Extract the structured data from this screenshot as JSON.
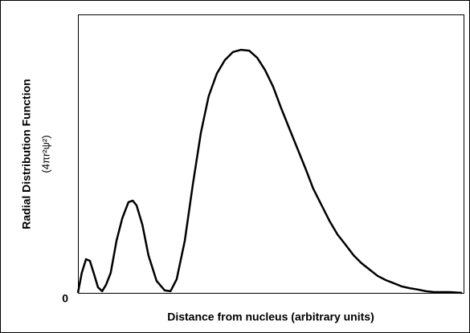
{
  "chart_data": {
    "type": "line",
    "x_label": "Distance from nucleus (arbitrary units)",
    "y_label": "Radial Distribution Function",
    "y_label_sub": "(4πr²ψ²)",
    "xlim": [
      0,
      100
    ],
    "ylim": [
      0,
      100
    ],
    "yticks": [
      0
    ],
    "series": [
      {
        "color": "#000000",
        "x": [
          0,
          1.0,
          2.1,
          3.1,
          4.2,
          5.2,
          6.3,
          7.3,
          8.5,
          10.0,
          11.5,
          13.1,
          14.2,
          15.2,
          16.7,
          18.3,
          20.4,
          22.5,
          24.0,
          25.6,
          27.7,
          29.8,
          31.9,
          33.9,
          36.0,
          38.1,
          40.2,
          42.3,
          44.4,
          46.5,
          48.5,
          50.6,
          52.7,
          54.8,
          56.9,
          59.0,
          61.0,
          63.1,
          65.2,
          67.3,
          69.4,
          71.5,
          73.5,
          75.6,
          77.7,
          79.8,
          81.9,
          84.0,
          86.0,
          88.1,
          90.2,
          92.3,
          96.5,
          99.6
        ],
        "values": [
          0,
          7.2,
          12.1,
          11.5,
          6.6,
          2.0,
          0.6,
          2.9,
          7.2,
          18.7,
          26.8,
          32.6,
          33.1,
          31.4,
          24.5,
          13.5,
          4.3,
          0.9,
          0.6,
          4.9,
          18.7,
          38.9,
          57.6,
          70.6,
          78.7,
          83.6,
          86.5,
          87.3,
          87.0,
          84.4,
          80.1,
          74.1,
          66.3,
          59.1,
          51.9,
          44.7,
          37.5,
          31.7,
          25.9,
          21.0,
          17.3,
          13.5,
          10.7,
          8.4,
          6.1,
          4.6,
          3.5,
          2.3,
          1.7,
          1.2,
          0.6,
          0.3,
          0.3,
          0
        ]
      }
    ]
  }
}
